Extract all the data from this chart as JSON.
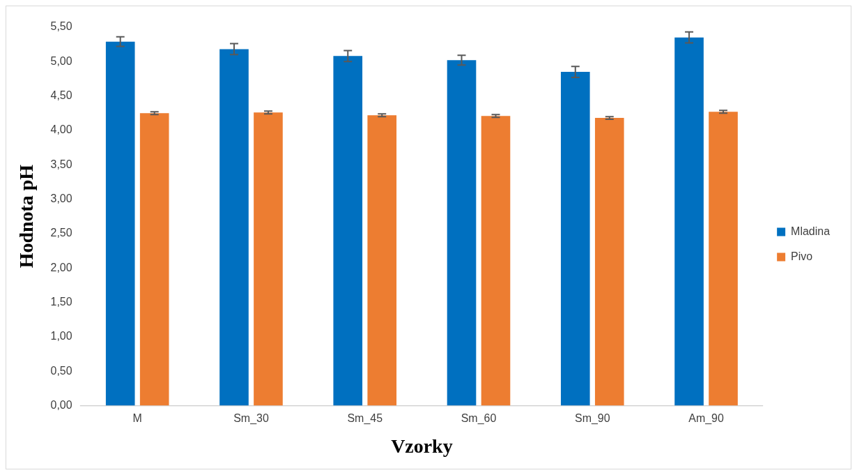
{
  "chart_data": {
    "type": "bar",
    "xlabel": "Vzorky",
    "ylabel": "Hodnota pH",
    "categories": [
      "M",
      "Sm_30",
      "Sm_45",
      "Sm_60",
      "Sm_90",
      "Am_90"
    ],
    "series": [
      {
        "name": "Mladina",
        "color": "#0070c0",
        "values": [
          5.29,
          5.18,
          5.08,
          5.02,
          4.85,
          5.35
        ],
        "errors": [
          0.07,
          0.08,
          0.08,
          0.07,
          0.08,
          0.08
        ]
      },
      {
        "name": "Pivo",
        "color": "#ed7d31",
        "values": [
          4.25,
          4.26,
          4.22,
          4.21,
          4.18,
          4.27
        ],
        "errors": [
          0.02,
          0.02,
          0.02,
          0.02,
          0.02,
          0.02
        ]
      }
    ],
    "ylim": [
      0,
      5.5
    ],
    "yticks": [
      {
        "value": 0,
        "label": "0,00"
      },
      {
        "value": 0.5,
        "label": "0,50"
      },
      {
        "value": 1,
        "label": "1,00"
      },
      {
        "value": 1.5,
        "label": "1,50"
      },
      {
        "value": 2,
        "label": "2,00"
      },
      {
        "value": 2.5,
        "label": "2,50"
      },
      {
        "value": 3,
        "label": "3,00"
      },
      {
        "value": 3.5,
        "label": "3,50"
      },
      {
        "value": 4,
        "label": "4,00"
      },
      {
        "value": 4.5,
        "label": "4,50"
      },
      {
        "value": 5,
        "label": "5,00"
      },
      {
        "value": 5.5,
        "label": "5,50"
      }
    ],
    "grid": false,
    "legend": "right"
  }
}
